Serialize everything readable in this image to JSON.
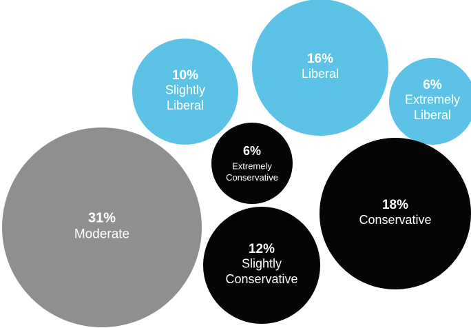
{
  "chart_data": {
    "type": "bubble",
    "unit": "%",
    "colors": {
      "liberal": "#5dc3e6",
      "moderate": "#8f8f8f",
      "conservative": "#050505",
      "text": "#ffffff"
    },
    "bubbles": [
      {
        "id": "slightly-liberal",
        "value": 10,
        "value_label": "10%",
        "label_lines": [
          "Slightly",
          "Liberal"
        ],
        "group": "liberal"
      },
      {
        "id": "liberal",
        "value": 16,
        "value_label": "16%",
        "label_lines": [
          "Liberal"
        ],
        "group": "liberal"
      },
      {
        "id": "extremely-liberal",
        "value": 6,
        "value_label": "6%",
        "label_lines": [
          "Extremely",
          "Liberal"
        ],
        "group": "liberal"
      },
      {
        "id": "extremely-conservative",
        "value": 6,
        "value_label": "6%",
        "label_lines": [
          "Extremely",
          "Conservative"
        ],
        "group": "conservative"
      },
      {
        "id": "moderate",
        "value": 31,
        "value_label": "31%",
        "label_lines": [
          "Moderate"
        ],
        "group": "moderate"
      },
      {
        "id": "conservative",
        "value": 18,
        "value_label": "18%",
        "label_lines": [
          "Conservative"
        ],
        "group": "conservative"
      },
      {
        "id": "slightly-conservative",
        "value": 12,
        "value_label": "12%",
        "label_lines": [
          "Slightly",
          "Conservative"
        ],
        "group": "conservative"
      }
    ]
  }
}
